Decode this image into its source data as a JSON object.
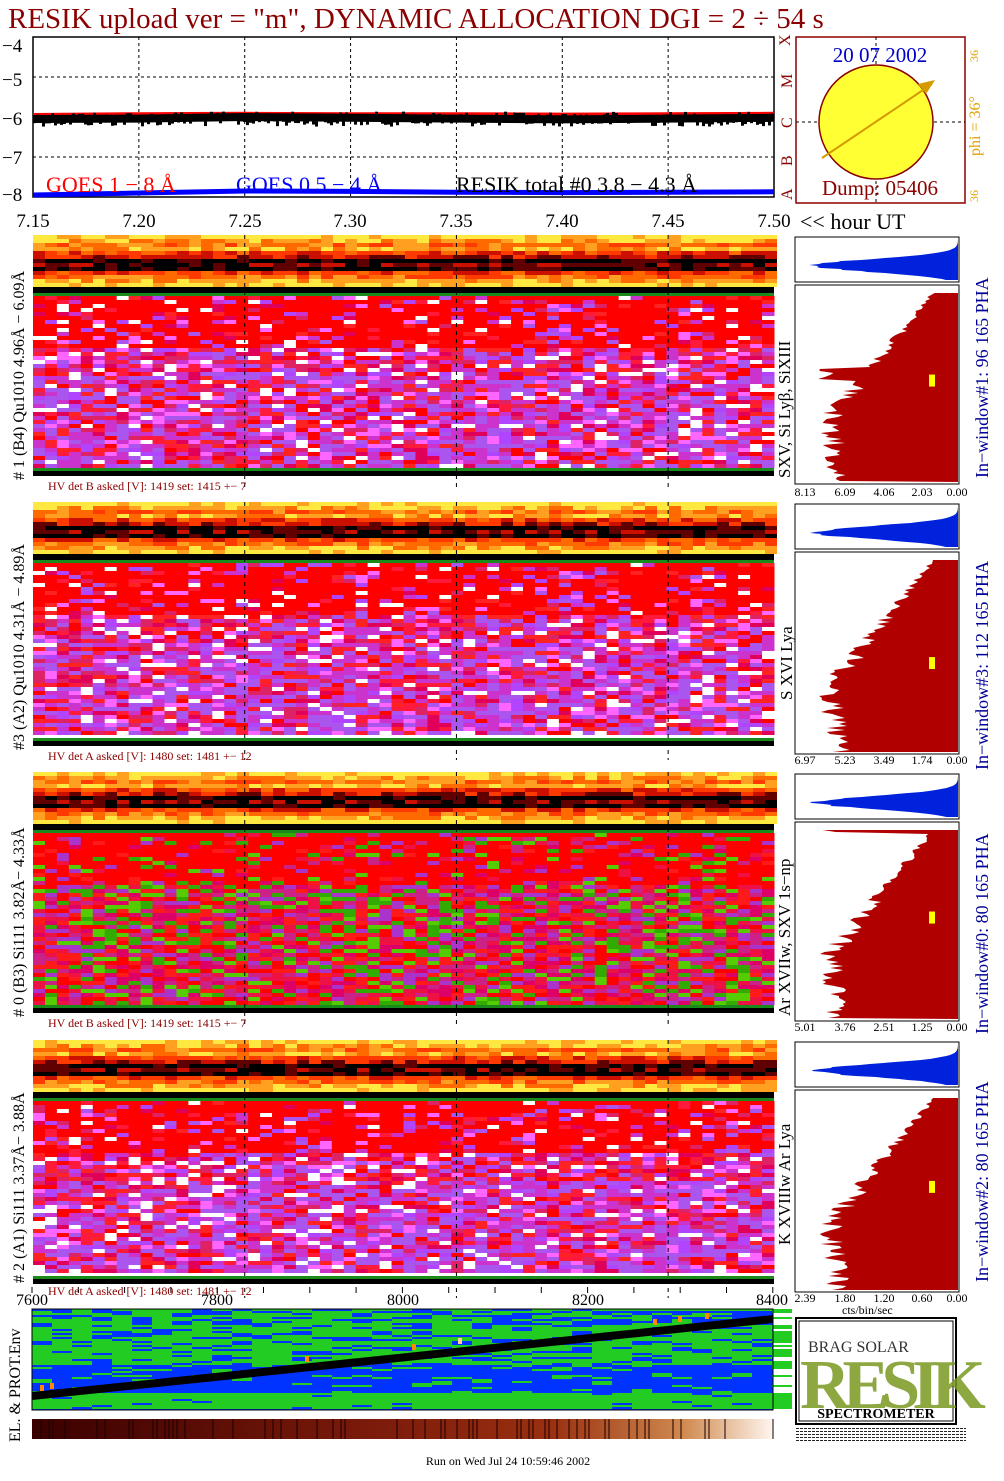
{
  "header": {
    "title": "RESIK upload ver = \"m\", DYNAMIC ALLOCATION  DGI =   2 ÷  54 s"
  },
  "goes_panel": {
    "y_ticks": [
      "−4",
      "−5",
      "−6",
      "−7",
      "−8"
    ],
    "class_letters": [
      "X",
      "M",
      "C",
      "B",
      "A"
    ],
    "legend": {
      "goes_long": "GOES 1 − 8 Å",
      "goes_short": "GOES 0.5 − 4 Å",
      "resik_total": "RESIK total #0  3.8 − 4.3 Å"
    },
    "x_ticks": [
      "7.15",
      "7.20",
      "7.25",
      "7.30",
      "7.35",
      "7.40",
      "7.45",
      "7.50"
    ],
    "x_suffix": "<< hour UT"
  },
  "sun_panel": {
    "date": "20 07 2002",
    "dump": "Dump: 05406",
    "phi_label": "phi = 36°",
    "phi_top": "36",
    "phi_bottom": "36"
  },
  "detector_panels": [
    {
      "id": "1",
      "left_label": "# 1 (B4) Qu1010 4.96Å − 6.09Å",
      "lines_label": "SXV, Si Lyβ, SiXIII",
      "window_label": "In−window#1:   96 165  PHA",
      "hv_text": "HV det B asked [V]:  1419 set:  1415  +−    7",
      "spectrum_ticks": [
        "8.13",
        "6.09",
        "4.06",
        "2.03",
        "0.00"
      ]
    },
    {
      "id": "3",
      "left_label": "#3 (A2) Qu1010  4.31Å − 4.89Å",
      "lines_label": "S XVI Lya",
      "window_label": "In−window#3:  112 165  PHA",
      "hv_text": "HV det A asked [V]:  1480 set:  1481  +−    12",
      "spectrum_ticks": [
        "6.97",
        "5.23",
        "3.49",
        "1.74",
        "0.00"
      ]
    },
    {
      "id": "0",
      "left_label": "# 0 (B3) Si111  3.82Å− 4.33Å",
      "lines_label": "Ar XVIIw,  SXV 1s−np",
      "window_label": "In−window#0:   80 165  PHA",
      "hv_text": "HV det B asked [V]:  1419 set:  1415  +−    7",
      "spectrum_ticks": [
        "5.01",
        "3.76",
        "2.51",
        "1.25",
        "0.00"
      ]
    },
    {
      "id": "2",
      "left_label": "# 2 (A1) Si111  3.37Å− 3.88Å",
      "lines_label": "K XVIIIw   Ar Lya",
      "window_label": "In−window#2:   80 165  PHA",
      "hv_text": "HV det A asked [V]:  1480 set:  1481  +−    12",
      "spectrum_ticks": [
        "2.39",
        "1.80",
        "1.20",
        "0.60",
        "0.00"
      ]
    }
  ],
  "spectrum_xlabel": "cts/bin/sec",
  "env_panel": {
    "label": "EL. & PROT.Env",
    "x_ticks": [
      "7600",
      "7800",
      "8000",
      "8200",
      "8400"
    ]
  },
  "logo": {
    "letters": "RESIK",
    "small_letters": "BRAG SOLAR",
    "word": "SPECTROMETER"
  },
  "footer": {
    "run_text": "Run on Wed Jul 24 10:59:46 2002"
  },
  "colors": {
    "title": "#8b0000",
    "goes_long": "#ff0000",
    "goes_short": "#0000ff",
    "resik_total": "#000000",
    "sun_fill": "#ffff33",
    "phi_text": "#e0a000",
    "spectrum_fill": "#b00000",
    "pha_fill": "#0022dd",
    "window_label": "#000099"
  },
  "chart_data": [
    {
      "type": "line",
      "title": "",
      "xlabel": "<< hour UT",
      "ylabel": "",
      "x_range": [
        7.15,
        7.5
      ],
      "ylim": [
        -8,
        -4
      ],
      "grid": true,
      "legend": "bottom",
      "series": [
        {
          "name": "GOES 1 − 8 Å",
          "x": [
            7.15,
            7.2,
            7.25,
            7.3,
            7.35,
            7.4,
            7.45,
            7.5
          ],
          "values": [
            -5.95,
            -5.93,
            -5.92,
            -5.93,
            -5.93,
            -5.94,
            -5.93,
            -5.92
          ]
        },
        {
          "name": "GOES 0.5 − 4 Å",
          "x": [
            7.15,
            7.2,
            7.25,
            7.3,
            7.35,
            7.4,
            7.45,
            7.5
          ],
          "values": [
            -7.95,
            -7.9,
            -7.85,
            -7.86,
            -7.88,
            -7.89,
            -7.88,
            -7.87
          ]
        },
        {
          "name": "RESIK total #0  3.8 − 4.3 Å",
          "x": [
            7.15,
            7.2,
            7.25,
            7.3,
            7.35,
            7.4,
            7.45,
            7.5
          ],
          "values": [
            -6.05,
            -6.04,
            -6.0,
            -6.02,
            -6.04,
            -6.06,
            -6.04,
            -6.02
          ]
        }
      ]
    },
    {
      "type": "heatmap",
      "title": "",
      "xlabel": "",
      "ylabel": "EL. & PROT.Env",
      "x_range": [
        7600,
        8400
      ],
      "x_ticks": [
        7600,
        7800,
        8000,
        8200,
        8400
      ]
    }
  ]
}
